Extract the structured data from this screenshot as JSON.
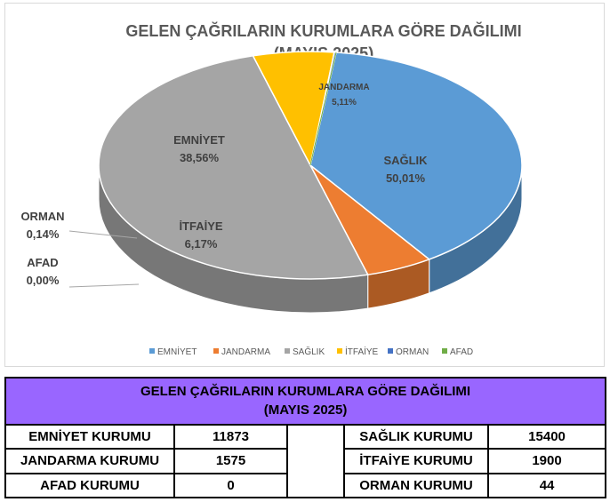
{
  "chart_data": {
    "type": "pie",
    "title_line1": "GELEN ÇAĞRILARIN KURUMLARA GÖRE DAĞILIMI",
    "title_line2": "(MAYIS 2025)",
    "slices": [
      {
        "name": "EMNİYET",
        "value": 38.56,
        "label": "38,56%",
        "color": "#5b9bd5"
      },
      {
        "name": "JANDARMA",
        "value": 5.11,
        "label": "5,11%",
        "color": "#ed7d31"
      },
      {
        "name": "SAĞLIK",
        "value": 50.01,
        "label": "50,01%",
        "color": "#a5a5a5"
      },
      {
        "name": "İTFAİYE",
        "value": 6.17,
        "label": "6,17%",
        "color": "#ffc000"
      },
      {
        "name": "ORMAN",
        "value": 0.14,
        "label": "0,14%",
        "color": "#4472c4"
      },
      {
        "name": "AFAD",
        "value": 0.0,
        "label": "0,00%",
        "color": "#70ad47"
      }
    ],
    "legend": [
      "EMNİYET",
      "JANDARMA",
      "SAĞLIK",
      "İTFAİYE",
      "ORMAN",
      "AFAD"
    ],
    "legend_position": "bottom"
  },
  "table": {
    "title_line1": "GELEN ÇAĞRILARIN KURUMLARA GÖRE DAĞILIMI",
    "title_line2": "(MAYIS 2025)",
    "rows": [
      {
        "left_label": "EMNİYET KURUMU",
        "left_value": "11873",
        "right_label": "SAĞLIK KURUMU",
        "right_value": "15400"
      },
      {
        "left_label": "JANDARMA KURUMU",
        "left_value": "1575",
        "right_label": "İTFAİYE KURUMU",
        "right_value": "1900"
      },
      {
        "left_label": "AFAD KURUMU",
        "left_value": "0",
        "right_label": "ORMAN KURUMU",
        "right_value": "44"
      }
    ],
    "header_color": "#9966ff"
  }
}
